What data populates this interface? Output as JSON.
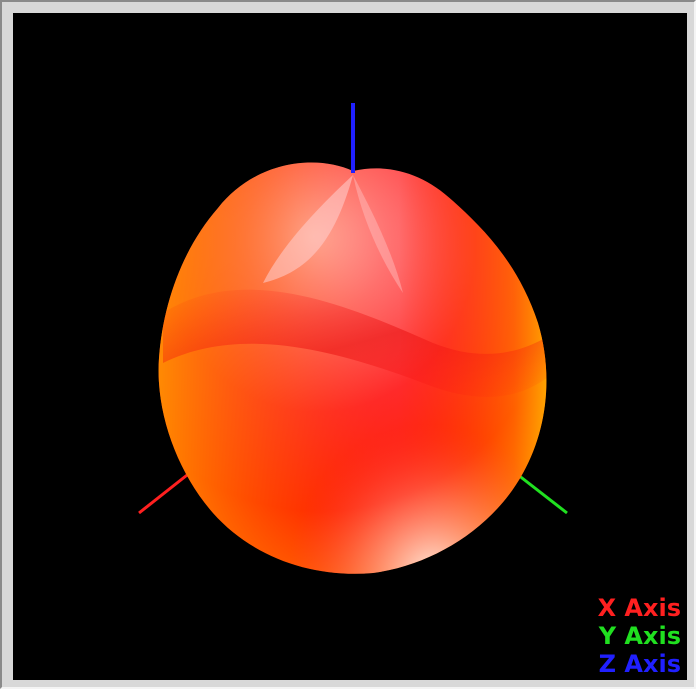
{
  "viewer": {
    "background_color": "#000000",
    "surface_colors": {
      "highlight": "#ffb8b8",
      "base": "#ff2020",
      "shadow": "#ff8c00",
      "edge": "#ffd000"
    }
  },
  "legend": {
    "x_axis": {
      "label": "X Axis",
      "color": "#ff2020"
    },
    "y_axis": {
      "label": "Y Axis",
      "color": "#20e020"
    },
    "z_axis": {
      "label": "Z Axis",
      "color": "#2020ff"
    }
  }
}
